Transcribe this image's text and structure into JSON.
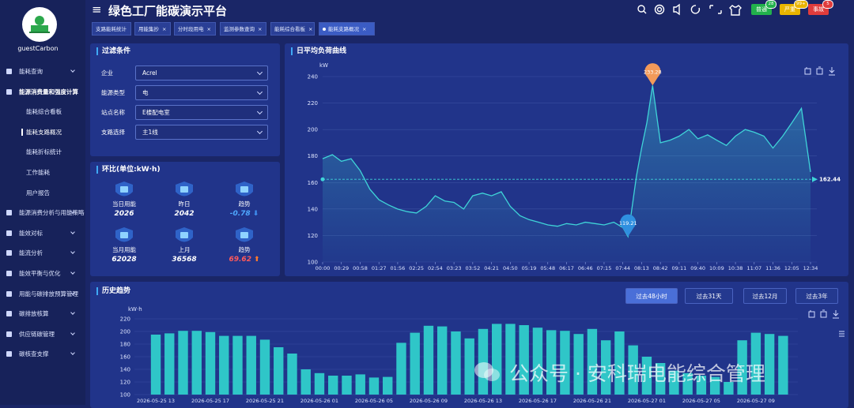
{
  "sidebar": {
    "user": "guestCarbon",
    "menu": [
      {
        "label": "能耗查询"
      },
      {
        "label": "能源消费量和强度计算",
        "children": [
          {
            "label": "能耗综合看板"
          },
          {
            "label": "能耗支路概况",
            "active": true
          },
          {
            "label": "能耗折标统计"
          },
          {
            "label": "工作能耗"
          },
          {
            "label": "用户报告"
          }
        ]
      },
      {
        "label": "能源消费分析与用能策略"
      },
      {
        "label": "能效对标"
      },
      {
        "label": "能流分析"
      },
      {
        "label": "能效平衡与优化"
      },
      {
        "label": "用能与碳排放预算管理"
      },
      {
        "label": "碳排放核算"
      },
      {
        "label": "供应链碳管理"
      },
      {
        "label": "碳核查支撑"
      }
    ]
  },
  "header": {
    "title": "绿色工厂能碳演示平台",
    "alarms": [
      {
        "label": "普通",
        "count": 28,
        "color": "#22b14c"
      },
      {
        "label": "严重",
        "count": "99+",
        "color": "#e8b400"
      },
      {
        "label": "事故",
        "count": 5,
        "color": "#e03c3c"
      }
    ]
  },
  "tabs": [
    {
      "label": "支路能耗统计",
      "closable": false
    },
    {
      "label": "用能集抄"
    },
    {
      "label": "分时段用电"
    },
    {
      "label": "监测参数查询"
    },
    {
      "label": "能耗综合看板"
    },
    {
      "label": "能耗支路概况",
      "active": true
    }
  ],
  "filter": {
    "title": "过滤条件",
    "fields": [
      {
        "label": "企业",
        "value": "Acrel"
      },
      {
        "label": "能源类型",
        "value": "电"
      },
      {
        "label": "站点名称",
        "value": "E楼配电室"
      },
      {
        "label": "支路选择",
        "value": "主1线"
      }
    ]
  },
  "comparison": {
    "title": "环比(单位:kW·h)",
    "items": [
      {
        "label": "当日用能",
        "value": 2026
      },
      {
        "label": "昨日",
        "value": 2042
      },
      {
        "label": "趋势",
        "value": -0.78
      },
      {
        "label": "当月用能",
        "value": 62028
      },
      {
        "label": "上月",
        "value": 36568
      },
      {
        "label": "趋势",
        "value": 69.62
      }
    ]
  },
  "chart_data": [
    {
      "type": "line",
      "title": "日平均负荷曲线",
      "y_label": "kW",
      "x": [
        "00:00",
        "00:15",
        "00:29",
        "00:44",
        "00:58",
        "01:13",
        "01:27",
        "01:42",
        "01:56",
        "02:11",
        "02:25",
        "02:40",
        "02:54",
        "03:09",
        "03:23",
        "03:38",
        "03:52",
        "04:07",
        "04:21",
        "04:36",
        "04:50",
        "05:05",
        "05:19",
        "05:34",
        "05:48",
        "06:03",
        "06:17",
        "06:32",
        "06:46",
        "07:01",
        "07:15",
        "07:30",
        "07:44",
        "07:52",
        "08:05",
        "08:13",
        "08:21",
        "08:30",
        "08:42",
        "08:57",
        "09:11",
        "09:26",
        "09:40",
        "09:55",
        "10:09",
        "10:24",
        "10:38",
        "10:53",
        "11:07",
        "11:22",
        "11:36",
        "11:51",
        "12:05",
        "12:20",
        "12:34"
      ],
      "series": [
        {
          "color": "#3fd4d8",
          "values": [
            178,
            181,
            176,
            178,
            169,
            155,
            147,
            143,
            140,
            138,
            137,
            142,
            150,
            146,
            145,
            140,
            150,
            152,
            150,
            153,
            142,
            135,
            132,
            130,
            128,
            127,
            129,
            128,
            130,
            129,
            128,
            130,
            126,
            119.21,
            165,
            186,
            205,
            233.28,
            190,
            192,
            195,
            200,
            193,
            196,
            192,
            188,
            195,
            200,
            198,
            195,
            186,
            195,
            205,
            216,
            168
          ]
        }
      ],
      "average": 162.44,
      "xlim": [
        "00:00",
        "12:34"
      ],
      "xticks": [
        "00:00",
        "00:29",
        "00:58",
        "01:27",
        "01:56",
        "02:25",
        "02:54",
        "03:23",
        "03:52",
        "04:21",
        "04:50",
        "05:19",
        "05:48",
        "06:17",
        "06:46",
        "07:15",
        "07:44",
        "08:13",
        "08:42",
        "09:11",
        "09:40",
        "10:09",
        "10:38",
        "11:07",
        "11:36",
        "12:05",
        "12:34"
      ],
      "ylim": [
        100,
        240
      ],
      "yticks": [
        100,
        120,
        140,
        160,
        180,
        200,
        220,
        240
      ],
      "grid": true
    },
    {
      "type": "bar",
      "title": "历史趋势",
      "y_label": "kW·h",
      "periods": [
        {
          "label": "过去48小时",
          "active": true
        },
        {
          "label": "过去31天"
        },
        {
          "label": "过去12月"
        },
        {
          "label": "过去3年"
        }
      ],
      "categories": [
        "2026-05-25 13",
        null,
        null,
        null,
        "2026-05-25 17",
        null,
        null,
        null,
        "2026-05-25 21",
        null,
        null,
        null,
        "2026-05-26 01",
        null,
        null,
        null,
        "2026-05-26 05",
        null,
        null,
        null,
        "2026-05-26 09",
        null,
        null,
        null,
        "2026-05-26 13",
        null,
        null,
        null,
        "2026-05-26 17",
        null,
        null,
        null,
        "2026-05-26 21",
        null,
        null,
        null,
        "2026-05-27 01",
        null,
        null,
        null,
        "2026-05-27 05",
        null,
        null,
        null,
        "2026-05-27 09",
        null,
        null
      ],
      "values": [
        195,
        197,
        201,
        201,
        199,
        193,
        193,
        193,
        187,
        175,
        165,
        140,
        134,
        130,
        130,
        132,
        127,
        128,
        182,
        198,
        209,
        208,
        200,
        189,
        204,
        212,
        212,
        210,
        206,
        202,
        201,
        196,
        204,
        186,
        200,
        178,
        160,
        150,
        138,
        134,
        130,
        128,
        120,
        186,
        198,
        196,
        193
      ],
      "color": "#2fc6c8",
      "ylim": [
        100,
        220
      ],
      "yticks": [
        100,
        120,
        140,
        160,
        180,
        200,
        220
      ],
      "grid": true
    }
  ],
  "watermark": "公众号 · 安科瑞电能综合管理"
}
